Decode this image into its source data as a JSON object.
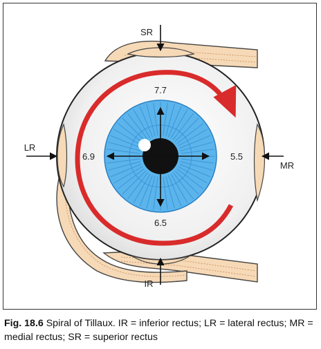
{
  "figure": {
    "labels": {
      "sr": "SR",
      "ir": "IR",
      "lr": "LR",
      "mr": "MR"
    },
    "distances": {
      "top": "7.7",
      "left": "6.9",
      "right": "5.5",
      "bottom": "6.5"
    }
  },
  "caption": {
    "fig_number": "Fig. 18.6",
    "text": " Spiral of Tillaux. IR = inferior rectus; LR = lateral rectus; MR = medial rectus; SR = superior rectus"
  },
  "colors": {
    "sclera": "#f1f1f1",
    "iris": "#5bb5ec",
    "iris_dark": "#2a7fc4",
    "pupil": "#111111",
    "spiral": "#d92b2b",
    "muscle": "#f6d9b6",
    "muscle_line": "#c9885a"
  }
}
